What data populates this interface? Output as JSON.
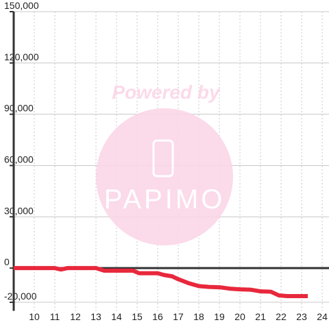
{
  "chart_data": {
    "type": "line",
    "watermark": {
      "text": "Powered by",
      "logo": "PAPIMO"
    },
    "x": [
      9,
      11,
      11.3,
      11.6,
      13,
      13.4,
      14.8,
      15.1,
      16,
      16.3,
      16.7,
      17,
      17.5,
      18,
      18.5,
      19,
      19.5,
      20,
      20.5,
      21,
      21.5,
      21.9,
      22.3,
      23.3
    ],
    "series": [
      {
        "color": "#e8283c",
        "values": [
          0,
          0,
          -800,
          0,
          0,
          -1500,
          -1500,
          -3000,
          -3000,
          -4000,
          -4800,
          -6500,
          -8800,
          -10500,
          -11000,
          -11200,
          -12000,
          -12400,
          -12600,
          -13600,
          -13800,
          -16000,
          -16400,
          -16400
        ]
      }
    ],
    "xlim": [
      9,
      24.33
    ],
    "xticks": [
      10,
      11,
      12,
      13,
      14,
      15,
      16,
      17,
      18,
      19,
      20,
      21,
      22,
      23,
      24
    ],
    "ylim": [
      -25000,
      150000
    ],
    "yticks": [
      {
        "value": 150000,
        "label": "150,000"
      },
      {
        "value": 120000,
        "label": "120,000"
      },
      {
        "value": 90000,
        "label": "90,000"
      },
      {
        "value": 60000,
        "label": "60,000"
      },
      {
        "value": 30000,
        "label": "30,000"
      },
      0,
      {
        "value": -20000,
        "label": "-20,000"
      }
    ],
    "grid": true
  }
}
